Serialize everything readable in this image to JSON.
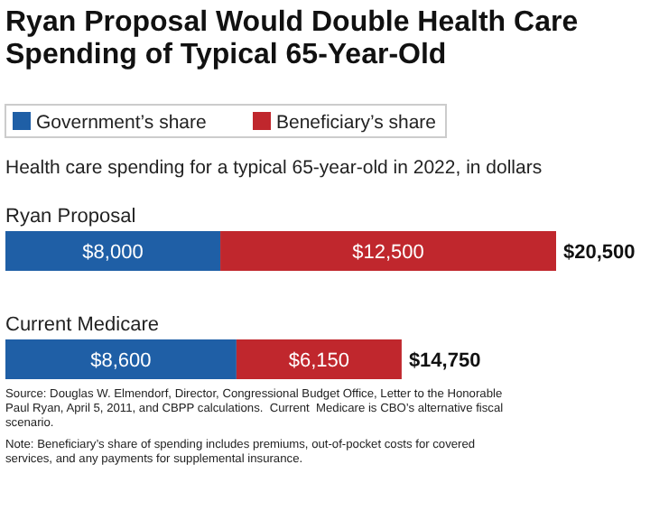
{
  "chart_data": {
    "type": "bar",
    "orientation": "horizontal",
    "stacked": true,
    "title": "Ryan Proposal Would Double Health Care Spending of Typical 65-Year-Old",
    "subtitle": "Health care spending for a typical 65-year-old in 2022, in dollars",
    "categories": [
      "Ryan Proposal",
      "Current Medicare"
    ],
    "series": [
      {
        "name": "Government’s share",
        "color": "#1f5fa6",
        "values": [
          8000,
          8600
        ],
        "value_labels": [
          "$8,000",
          "$8,600"
        ]
      },
      {
        "name": "Beneficiary’s share",
        "color": "#c0272d",
        "values": [
          12500,
          6150
        ],
        "value_labels": [
          "$12,500",
          "$6,150"
        ]
      }
    ],
    "totals": [
      "$20,500",
      "$14,750"
    ],
    "legend": "top left",
    "annotations": [
      "Source: Douglas W. Elmendorf, Director, Congressional Budget Office, Letter to the Honorable Paul Ryan, April 5, 2011, and CBPP calculations.  Current  Medicare is CBO’s alternative fiscal scenario.",
      "Note: Beneficiary’s share of spending includes premiums, out-of-pocket costs for covered services, and any payments for supplemental insurance."
    ]
  }
}
